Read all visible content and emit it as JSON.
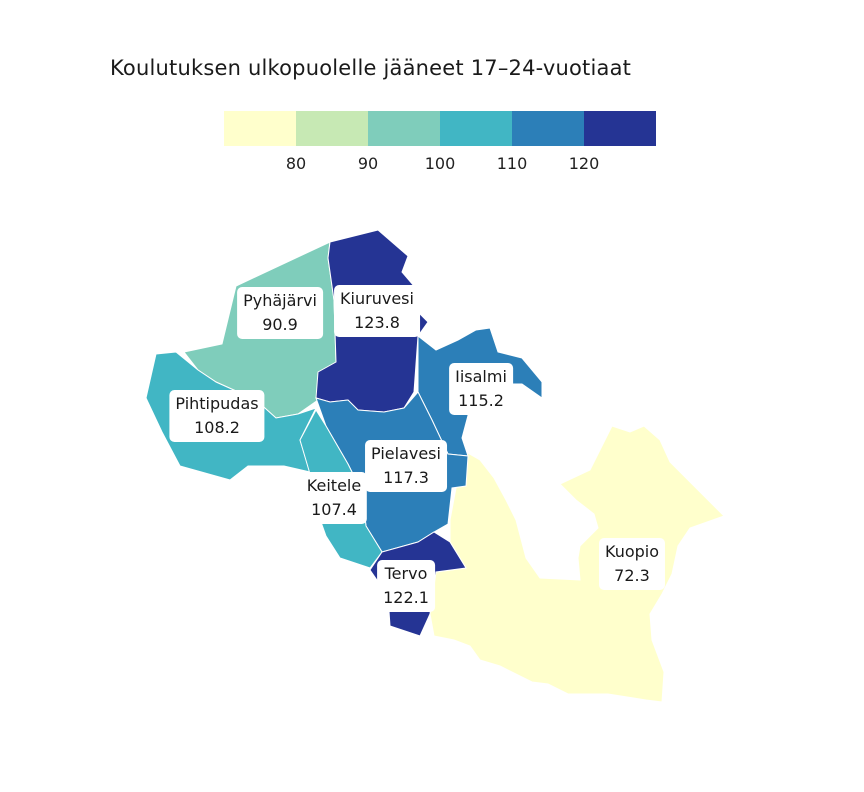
{
  "title": "Koulutuksen ulkopuolelle jääneet 17–24-vuotiaat",
  "legend": {
    "colors": [
      "#ffffcc",
      "#c7e9b4",
      "#7fcdbb",
      "#41b6c4",
      "#2c7fb8",
      "#253494"
    ],
    "ticks": [
      "80",
      "90",
      "100",
      "110",
      "120"
    ]
  },
  "regions": [
    {
      "name": "Pyhäjärvi",
      "value": "90.9",
      "color": "#7fcdbb"
    },
    {
      "name": "Kiuruvesi",
      "value": "123.8",
      "color": "#253494"
    },
    {
      "name": "Iisalmi",
      "value": "115.2",
      "color": "#2c7fb8"
    },
    {
      "name": "Pihtipudas",
      "value": "108.2",
      "color": "#41b6c4"
    },
    {
      "name": "Pielavesi",
      "value": "117.3",
      "color": "#2c7fb8"
    },
    {
      "name": "Keitele",
      "value": "107.4",
      "color": "#41b6c4"
    },
    {
      "name": "Tervo",
      "value": "122.1",
      "color": "#253494"
    },
    {
      "name": "Kuopio",
      "value": "72.3",
      "color": "#ffffcc"
    }
  ]
}
